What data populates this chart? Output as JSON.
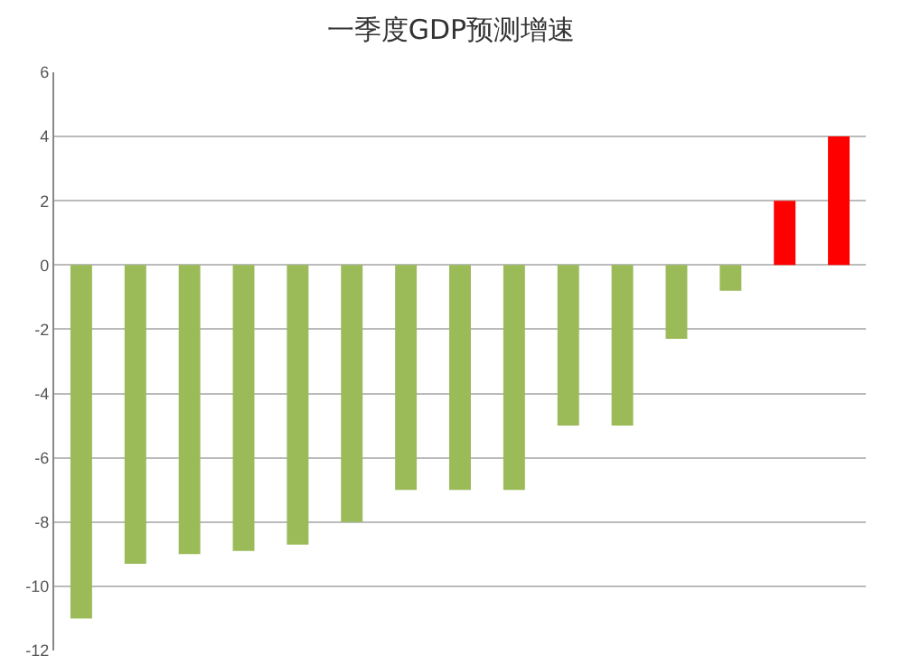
{
  "chart_data": {
    "type": "bar",
    "title": "一季度GDP预测增速",
    "categories": [
      null,
      null,
      null,
      null,
      null,
      null,
      null,
      null,
      null,
      null,
      null,
      null,
      null,
      null,
      null
    ],
    "values": [
      -11,
      -9.3,
      -9,
      -8.9,
      -8.7,
      -8,
      -7,
      -7,
      -7,
      -5,
      -5,
      -2.3,
      -0.8,
      2,
      4
    ],
    "colors": [
      "#9bbb59",
      "#9bbb59",
      "#9bbb59",
      "#9bbb59",
      "#9bbb59",
      "#9bbb59",
      "#9bbb59",
      "#9bbb59",
      "#9bbb59",
      "#9bbb59",
      "#9bbb59",
      "#9bbb59",
      "#9bbb59",
      "#ff0000",
      "#ff0000"
    ],
    "ylim": [
      -12,
      6
    ],
    "yticks": [
      -12,
      -10,
      -8,
      -6,
      -4,
      -2,
      0,
      2,
      4,
      6
    ],
    "grid": "y"
  }
}
